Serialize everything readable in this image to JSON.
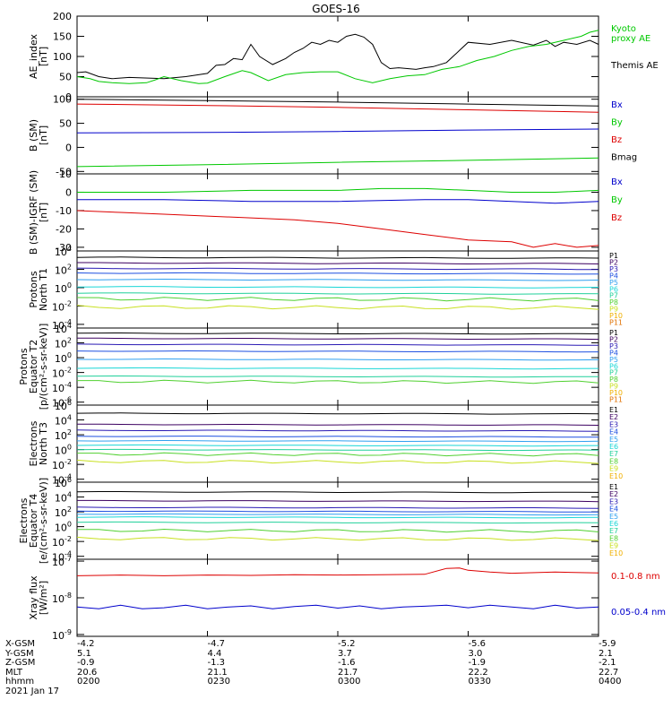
{
  "page_title": "GOES-16",
  "colors": {
    "black": "#000000",
    "green": "#00c800",
    "blue": "#0000cc",
    "red": "#dd0000",
    "P": [
      "#000000",
      "#3c0060",
      "#2a1ab4",
      "#1d4fe0",
      "#2fa0f0",
      "#18d6d6",
      "#20d09a",
      "#50d030",
      "#c8e020",
      "#f0b000",
      "#e07000",
      "#c00000"
    ]
  },
  "chart_data": [
    {
      "id": "ae",
      "type": "line",
      "ylabel": [
        "AE_index",
        "[nT]"
      ],
      "ylim": [
        0,
        200
      ],
      "yticks": [
        0,
        50,
        100,
        150,
        200
      ],
      "log": false,
      "legend": [
        {
          "text": "Kyoto",
          "color": "#00c800"
        },
        {
          "text": "proxy AE",
          "color": "#00c800"
        },
        {
          "text": "Themis AE",
          "color": "#000000"
        }
      ],
      "series": [
        {
          "name": "Themis AE",
          "color": "#000000",
          "x": [
            0,
            2,
            5,
            8,
            12,
            20,
            25,
            30,
            32,
            34,
            36,
            38,
            40,
            42,
            45,
            48,
            50,
            52,
            54,
            56,
            58,
            60,
            62,
            64,
            66,
            68,
            70,
            72,
            74,
            76,
            78,
            80,
            82,
            85,
            88,
            90,
            95,
            100,
            105,
            108,
            110,
            112,
            115,
            118,
            120
          ],
          "y": [
            60,
            62,
            50,
            45,
            48,
            45,
            50,
            58,
            78,
            80,
            95,
            92,
            130,
            100,
            80,
            95,
            110,
            120,
            135,
            130,
            140,
            135,
            150,
            155,
            148,
            130,
            85,
            70,
            72,
            70,
            68,
            72,
            75,
            85,
            115,
            135,
            130,
            140,
            128,
            140,
            125,
            135,
            130,
            140,
            130
          ]
        },
        {
          "name": "Kyoto proxy AE",
          "color": "#00c800",
          "x": [
            0,
            3,
            5,
            8,
            12,
            16,
            18,
            20,
            24,
            28,
            30,
            34,
            38,
            40,
            44,
            48,
            52,
            56,
            60,
            64,
            68,
            72,
            76,
            80,
            84,
            88,
            92,
            96,
            100,
            104,
            108,
            112,
            116,
            118,
            120
          ],
          "y": [
            50,
            45,
            38,
            35,
            33,
            35,
            42,
            50,
            40,
            33,
            34,
            50,
            65,
            60,
            40,
            55,
            60,
            62,
            62,
            45,
            35,
            45,
            52,
            55,
            68,
            75,
            90,
            100,
            115,
            125,
            130,
            140,
            150,
            160,
            165
          ]
        }
      ]
    },
    {
      "id": "bsm",
      "type": "line",
      "ylabel": [
        "B (SM)",
        "[nT]"
      ],
      "ylim": [
        -55,
        105
      ],
      "yticks": [
        -50,
        0,
        50,
        100
      ],
      "log": false,
      "legend": [
        {
          "text": "Bx",
          "color": "#0000cc"
        },
        {
          "text": "By",
          "color": "#00c800"
        },
        {
          "text": "Bz",
          "color": "#dd0000"
        },
        {
          "text": "Bmag",
          "color": "#000000"
        }
      ],
      "series": [
        {
          "name": "Bmag",
          "color": "#000000",
          "x": [
            0,
            30,
            60,
            90,
            120
          ],
          "y": [
            100,
            97,
            94,
            90,
            86
          ]
        },
        {
          "name": "Bz",
          "color": "#dd0000",
          "x": [
            0,
            30,
            60,
            90,
            120
          ],
          "y": [
            90,
            87,
            83,
            78,
            73
          ]
        },
        {
          "name": "Bx",
          "color": "#0000cc",
          "x": [
            0,
            30,
            60,
            90,
            120
          ],
          "y": [
            30,
            31,
            33,
            36,
            38
          ]
        },
        {
          "name": "By",
          "color": "#00c800",
          "x": [
            0,
            30,
            60,
            90,
            120
          ],
          "y": [
            -40,
            -36,
            -31,
            -27,
            -22
          ]
        }
      ]
    },
    {
      "id": "dbsm",
      "type": "line",
      "ylabel": [
        "B (SM)-IGRF (SM)",
        "[nT]"
      ],
      "ylim": [
        -32,
        10
      ],
      "yticks": [
        -30,
        -20,
        -10,
        0,
        10
      ],
      "log": false,
      "legend": [
        {
          "text": "Bx",
          "color": "#0000cc"
        },
        {
          "text": "By",
          "color": "#00c800"
        },
        {
          "text": "Bz",
          "color": "#dd0000"
        }
      ],
      "series": [
        {
          "name": "By",
          "color": "#00c800",
          "x": [
            0,
            20,
            40,
            60,
            70,
            80,
            90,
            100,
            110,
            120
          ],
          "y": [
            0,
            0,
            1,
            1,
            2,
            2,
            1,
            0,
            0,
            1
          ]
        },
        {
          "name": "Bx",
          "color": "#0000cc",
          "x": [
            0,
            20,
            40,
            60,
            80,
            90,
            100,
            110,
            120
          ],
          "y": [
            -4,
            -4,
            -5,
            -5,
            -4,
            -4,
            -5,
            -6,
            -5
          ]
        },
        {
          "name": "Bz",
          "color": "#dd0000",
          "x": [
            0,
            10,
            20,
            30,
            40,
            50,
            60,
            70,
            80,
            90,
            100,
            105,
            110,
            115,
            120
          ],
          "y": [
            -10,
            -11,
            -12,
            -13,
            -14,
            -15,
            -17,
            -20,
            -23,
            -26,
            -27,
            -30,
            -28,
            -30,
            -29
          ]
        }
      ]
    },
    {
      "id": "pn",
      "type": "line",
      "ylabel": [
        "Protons",
        "North T1"
      ],
      "ylim": [
        -4.4,
        4
      ],
      "yticks": [
        -4,
        -2,
        0,
        2,
        4
      ],
      "log": true,
      "legend": [
        "P1",
        "P2",
        "P3",
        "P4",
        "P5",
        "P6",
        "P7",
        "P8",
        "P9",
        "P10",
        "P11"
      ],
      "levels": [
        3.3,
        2.7,
        2.1,
        1.6,
        0.9,
        0.1,
        -0.6,
        -1.2,
        -2.1,
        null,
        null
      ]
    },
    {
      "id": "pe",
      "type": "line",
      "ylabel": [
        "Protons",
        "Equator T2",
        "[p/(cm²-s-sr-keV)]"
      ],
      "ylim": [
        -6.4,
        4
      ],
      "yticks": [
        -6,
        -4,
        -2,
        0,
        2,
        4
      ],
      "log": true,
      "legend": [
        "P1",
        "P2",
        "P3",
        "P4",
        "P5",
        "P6",
        "P7",
        "P8",
        "P9",
        "P10",
        "P11"
      ],
      "levels": [
        3.3,
        2.6,
        1.8,
        0.9,
        -0.2,
        -1.4,
        -2.5,
        -3.2,
        null,
        null,
        null
      ]
    },
    {
      "id": "en",
      "type": "line",
      "ylabel": [
        "Electrons",
        "North T3"
      ],
      "ylim": [
        -4.4,
        6
      ],
      "yticks": [
        -4,
        -2,
        0,
        2,
        4,
        6
      ],
      "log": true,
      "legend": [
        "E1",
        "E2",
        "E3",
        "E4",
        "E5",
        "E6",
        "E7",
        "E8",
        "E9",
        "E10"
      ],
      "levels": [
        4.9,
        3.4,
        2.6,
        1.8,
        1.2,
        0.6,
        0.0,
        -0.6,
        -1.6,
        null
      ]
    },
    {
      "id": "ee",
      "type": "line",
      "ylabel": [
        "Electrons",
        "Equator T4",
        "[e/(cm²-s-sr-keV)]"
      ],
      "ylim": [
        -4.4,
        6
      ],
      "yticks": [
        -4,
        -2,
        0,
        2,
        4,
        6
      ],
      "log": true,
      "legend": [
        "E1",
        "E2",
        "E3",
        "E4",
        "E5",
        "E6",
        "E7",
        "E8",
        "E9",
        "E10"
      ],
      "levels": [
        4.7,
        3.5,
        2.6,
        2.1,
        1.7,
        1.3,
        0.6,
        -0.5,
        -1.6,
        null
      ]
    },
    {
      "id": "xray",
      "type": "line",
      "ylabel": [
        "Xray flux",
        "[W/m²]"
      ],
      "ylim": [
        -9.05,
        -6.95
      ],
      "yticks": [
        -9,
        -8,
        -7
      ],
      "log": true,
      "legend": [
        {
          "text": "0.1-0.8 nm",
          "color": "#dd0000"
        },
        {
          "text": "0.05-0.4 nm",
          "color": "#0000cc"
        }
      ],
      "series": [
        {
          "name": "0.1-0.8 nm",
          "color": "#dd0000",
          "x": [
            0,
            10,
            20,
            30,
            40,
            50,
            60,
            70,
            80,
            85,
            88,
            90,
            95,
            100,
            110,
            120
          ],
          "y": [
            -7.4,
            -7.38,
            -7.4,
            -7.38,
            -7.39,
            -7.37,
            -7.38,
            -7.37,
            -7.36,
            -7.2,
            -7.19,
            -7.25,
            -7.3,
            -7.33,
            -7.3,
            -7.32
          ]
        },
        {
          "name": "0.05-0.4 nm",
          "color": "#0000cc",
          "x": [
            0,
            5,
            10,
            15,
            20,
            25,
            30,
            35,
            40,
            45,
            50,
            55,
            60,
            65,
            70,
            75,
            80,
            85,
            90,
            95,
            100,
            105,
            110,
            115,
            120
          ],
          "y": [
            -8.25,
            -8.3,
            -8.2,
            -8.3,
            -8.27,
            -8.2,
            -8.3,
            -8.25,
            -8.22,
            -8.3,
            -8.24,
            -8.2,
            -8.28,
            -8.22,
            -8.3,
            -8.25,
            -8.23,
            -8.2,
            -8.27,
            -8.2,
            -8.25,
            -8.3,
            -8.2,
            -8.28,
            -8.25
          ]
        }
      ]
    }
  ],
  "x_axis": {
    "range_minutes": [
      0,
      120
    ],
    "tick_minutes": [
      0,
      30,
      60,
      90,
      120
    ],
    "rows": [
      {
        "label": "X-GSM",
        "values": [
          "-4.2",
          "-4.7",
          "-5.2",
          "-5.6",
          "-5.9"
        ]
      },
      {
        "label": "Y-GSM",
        "values": [
          "5.1",
          "4.4",
          "3.7",
          "3.0",
          "2.1"
        ]
      },
      {
        "label": "Z-GSM",
        "values": [
          "-0.9",
          "-1.3",
          "-1.6",
          "-1.9",
          "-2.1"
        ]
      },
      {
        "label": "MLT",
        "values": [
          "20.6",
          "21.1",
          "21.7",
          "22.2",
          "22.7"
        ]
      },
      {
        "label": "hhmm",
        "values": [
          "0200",
          "0230",
          "0300",
          "0330",
          "0400"
        ]
      }
    ],
    "date": "2021 Jan 17"
  }
}
